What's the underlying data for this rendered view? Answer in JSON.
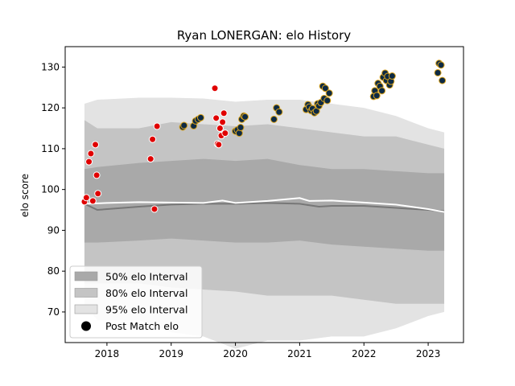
{
  "chart_data": {
    "type": "scatter",
    "title": "Ryan LONERGAN: elo History",
    "xlabel": "",
    "ylabel": "elo score",
    "xlim": [
      2017.35,
      2023.55
    ],
    "ylim": [
      62.5,
      135
    ],
    "x_ticks": [
      2018,
      2019,
      2020,
      2021,
      2022,
      2023
    ],
    "x_tick_labels": [
      "2018",
      "2019",
      "2020",
      "2021",
      "2022",
      "2023"
    ],
    "y_ticks": [
      70,
      80,
      90,
      100,
      110,
      120,
      130
    ],
    "y_tick_labels": [
      "70",
      "80",
      "90",
      "100",
      "110",
      "120",
      "130"
    ],
    "legend": {
      "position": "lower-left",
      "entries": [
        {
          "label": "50% elo Interval",
          "color": "#a9a9a9"
        },
        {
          "label": "80% elo Interval",
          "color": "#c4c4c4"
        },
        {
          "label": "95% elo Interval",
          "color": "#e3e3e3"
        },
        {
          "label": "Post Match elo",
          "color": "#000000"
        }
      ]
    },
    "bands": {
      "x": [
        2017.65,
        2017.85,
        2018.5,
        2019.0,
        2019.5,
        2020.0,
        2020.5,
        2021.0,
        2021.5,
        2022.0,
        2022.5,
        2023.0,
        2023.25
      ],
      "ci95_upper": [
        121,
        122,
        122.5,
        122.5,
        122.3,
        121.5,
        122,
        122,
        121,
        120,
        118,
        115,
        114
      ],
      "ci95_lower": [
        72,
        68,
        68,
        65,
        64,
        61,
        63,
        63,
        64,
        64,
        66,
        69,
        70
      ],
      "ci80_upper": [
        117,
        115,
        115,
        116.5,
        116,
        115.5,
        116,
        115,
        114,
        113,
        113,
        111,
        110
      ],
      "ci80_lower": [
        77,
        77,
        77,
        76,
        75.5,
        75,
        74,
        74,
        74,
        73,
        72,
        72,
        72
      ],
      "ci50_upper": [
        105,
        105.5,
        106.5,
        107,
        107.5,
        107,
        107.5,
        106,
        105,
        105,
        104.5,
        104,
        104
      ],
      "ci50_lower": [
        87,
        87,
        87.5,
        88,
        87.5,
        87,
        87,
        87.5,
        86.5,
        86,
        85.5,
        85,
        85
      ]
    },
    "series": [
      {
        "type": "line",
        "color": "#777777",
        "x": [
          2017.65,
          2017.85,
          2018.5,
          2019.0,
          2019.5,
          2020.0,
          2020.5,
          2021.0,
          2021.3,
          2021.5,
          2022.0,
          2022.5,
          2023.0,
          2023.25
        ],
        "y": [
          96.5,
          95,
          95.8,
          96.3,
          96.5,
          96.5,
          96.7,
          96.5,
          95.8,
          96,
          96,
          95.5,
          95,
          94.7
        ]
      },
      {
        "type": "line",
        "color": "#ffffff",
        "x": [
          2017.65,
          2018.0,
          2018.5,
          2019.0,
          2019.5,
          2019.8,
          2020.0,
          2020.5,
          2021.0,
          2021.15,
          2021.5,
          2022.0,
          2022.5,
          2023.0,
          2023.25
        ],
        "y": [
          96.5,
          96.7,
          96.9,
          96.8,
          96.7,
          97.3,
          96.7,
          97.2,
          97.9,
          97.2,
          97.3,
          96.8,
          96.3,
          95.2,
          94.5
        ]
      },
      {
        "type": "scatter",
        "name": "Post Match elo",
        "fill": "#e00000",
        "edge": "#ffffff",
        "x": [
          2017.65,
          2017.68,
          2017.72,
          2017.75,
          2017.78,
          2017.82,
          2017.84,
          2017.86,
          2018.68,
          2018.71,
          2018.74,
          2018.78,
          2019.68,
          2019.7,
          2019.72,
          2019.74,
          2019.76,
          2019.78,
          2019.8,
          2019.82,
          2019.84
        ],
        "y": [
          97,
          98,
          106.8,
          108.8,
          97.2,
          111,
          103.5,
          99,
          107.5,
          112.3,
          95.2,
          115.5,
          124.8,
          117.5,
          111.2,
          111,
          115,
          113.2,
          116.5,
          118.7,
          113.8
        ]
      },
      {
        "type": "scatter",
        "name": "Post Match elo",
        "fill": "#0d2a44",
        "edge": "#d9a21b",
        "x": [
          2019.18,
          2019.2,
          2019.35,
          2019.38,
          2019.42,
          2019.46,
          2020.0,
          2020.03,
          2020.06,
          2020.08,
          2020.1,
          2020.13,
          2020.15,
          2020.6,
          2020.64,
          2020.68,
          2021.1,
          2021.13,
          2021.15,
          2021.18,
          2021.2,
          2021.23,
          2021.26,
          2021.28,
          2021.3,
          2021.33,
          2021.36,
          2021.38,
          2021.4,
          2021.43,
          2021.46,
          2022.15,
          2022.17,
          2022.2,
          2022.22,
          2022.25,
          2022.28,
          2022.3,
          2022.33,
          2022.35,
          2022.37,
          2022.4,
          2022.42,
          2022.44,
          2023.15,
          2023.17,
          2023.2,
          2023.22
        ],
        "y": [
          115.3,
          115.7,
          115.6,
          116.8,
          117.2,
          117.6,
          114.3,
          114.6,
          113.8,
          115.2,
          117.2,
          118,
          117.8,
          117.2,
          120,
          119,
          119.6,
          120.8,
          120.2,
          119.3,
          119.8,
          118.8,
          119.2,
          121,
          120.5,
          121.3,
          125.3,
          122.3,
          124.8,
          121.8,
          123.6,
          122.8,
          124.2,
          123,
          126,
          125.3,
          124.2,
          127.5,
          128.5,
          126.7,
          127.7,
          125.6,
          126.5,
          127.8,
          128.6,
          130.9,
          130.5,
          126.7
        ]
      }
    ]
  }
}
